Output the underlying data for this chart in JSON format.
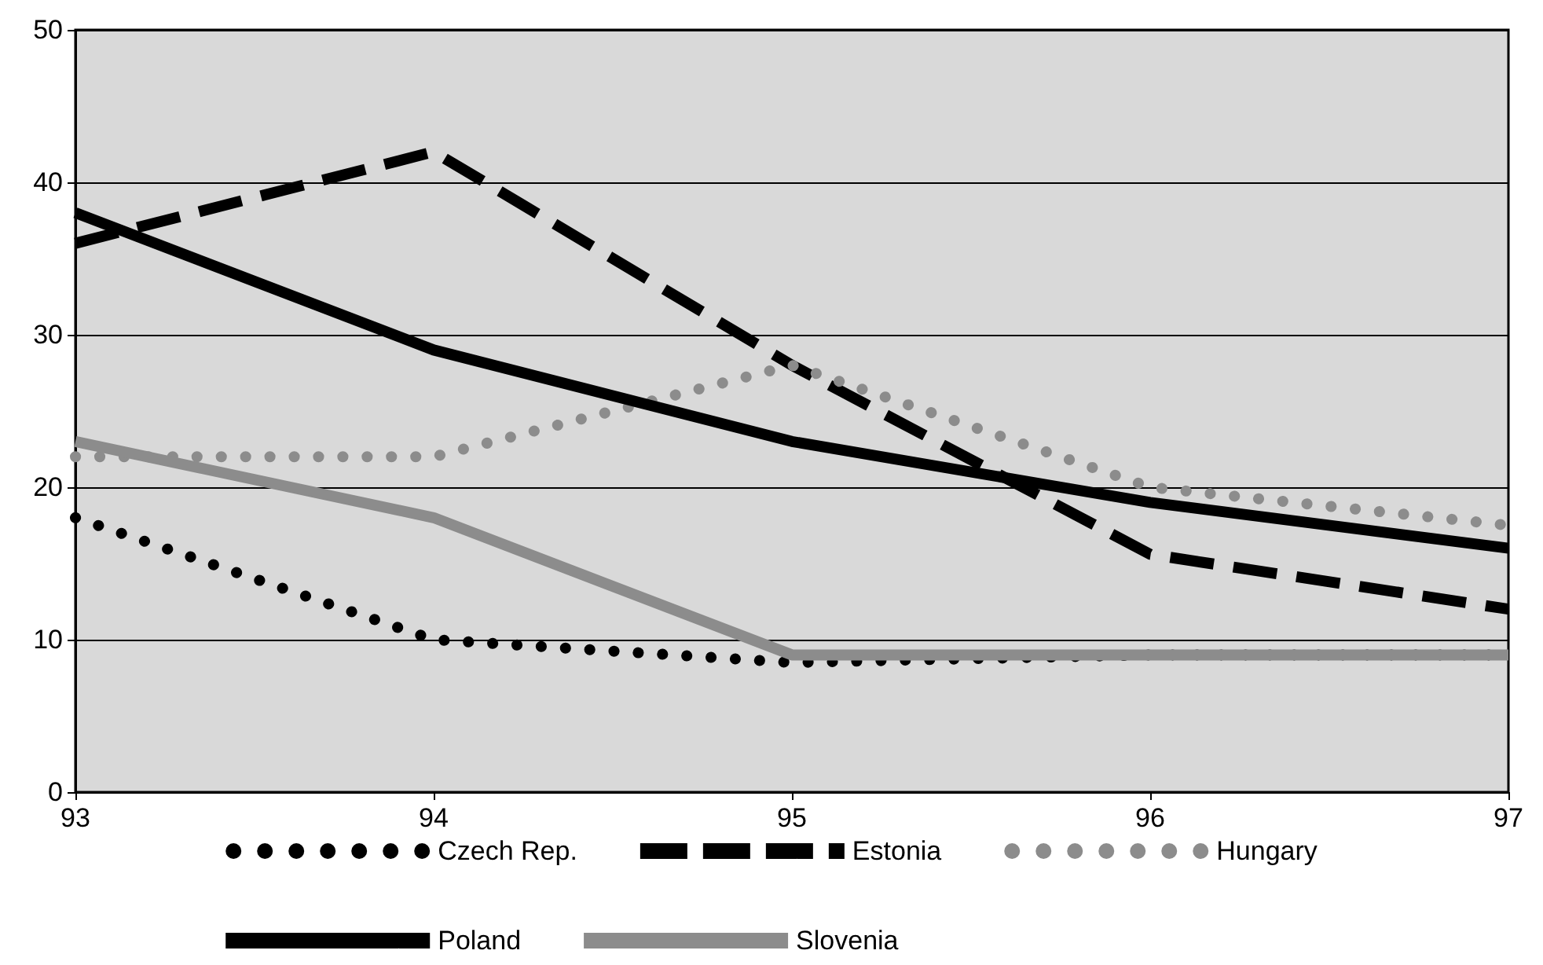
{
  "chart_data": {
    "type": "line",
    "x": [
      93,
      94,
      95,
      96,
      97
    ],
    "xlim": [
      93,
      97
    ],
    "xticks": [
      93,
      94,
      95,
      96,
      97
    ],
    "ylim": [
      0,
      50
    ],
    "yticks": [
      0,
      10,
      20,
      30,
      40,
      50
    ],
    "grid": "y",
    "legend": "bottom",
    "marker": "none",
    "series": [
      {
        "name": "Czech Rep.",
        "color": "#000000",
        "line_style": "dotted",
        "values": [
          18,
          10,
          8.5,
          9,
          9
        ]
      },
      {
        "name": "Estonia",
        "color": "#000000",
        "line_style": "dashed",
        "values": [
          36,
          42,
          28,
          15.6,
          12
        ]
      },
      {
        "name": "Hungary",
        "color": "#8c8c8c",
        "line_style": "dotted",
        "values": [
          22,
          22,
          28,
          20,
          17.5
        ]
      },
      {
        "name": "Poland",
        "color": "#000000",
        "line_style": "solid",
        "values": [
          38,
          29,
          23,
          19,
          16
        ]
      },
      {
        "name": "Slovenia",
        "color": "#8c8c8c",
        "line_style": "solid",
        "values": [
          23,
          18,
          9,
          9,
          9
        ]
      }
    ]
  }
}
